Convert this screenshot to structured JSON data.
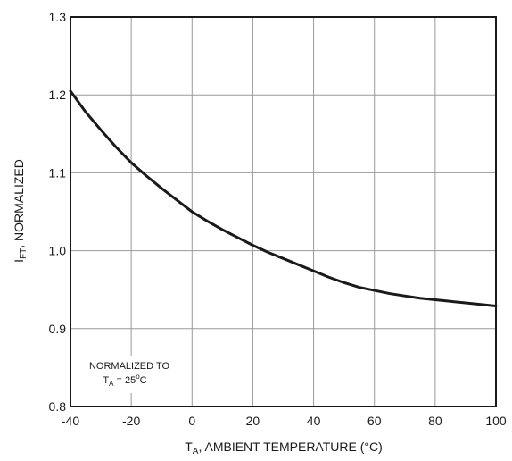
{
  "chart_data": {
    "type": "line",
    "title": "",
    "xlabel": {
      "main": "T",
      "sub": "A",
      "rest": ", AMBIENT TEMPERATURE (°C)"
    },
    "ylabel": {
      "main": "I",
      "sub": "FT",
      "rest": ", NORMALIZED"
    },
    "xlim": [
      -40,
      100
    ],
    "ylim": [
      0.8,
      1.3
    ],
    "x_ticks": [
      -40,
      -20,
      0,
      20,
      40,
      60,
      80,
      100
    ],
    "y_ticks": [
      0.8,
      0.9,
      1.0,
      1.1,
      1.2,
      1.3
    ],
    "x_tick_labels": [
      "-40",
      "-20",
      "0",
      "20",
      "40",
      "60",
      "80",
      "100"
    ],
    "y_tick_labels": [
      "0.8",
      "0.9",
      "1.0",
      "1.1",
      "1.2",
      "1.3"
    ],
    "grid": true,
    "series": [
      {
        "x": [
          -40,
          -35,
          -30,
          -25,
          -20,
          -15,
          -10,
          -5,
          0,
          5,
          10,
          15,
          20,
          25,
          30,
          35,
          40,
          45,
          50,
          55,
          60,
          65,
          70,
          75,
          80,
          85,
          90,
          95,
          100
        ],
        "y": [
          1.205,
          1.178,
          1.155,
          1.133,
          1.113,
          1.096,
          1.08,
          1.065,
          1.05,
          1.038,
          1.027,
          1.017,
          1.007,
          0.998,
          0.99,
          0.982,
          0.974,
          0.966,
          0.959,
          0.953,
          0.949,
          0.945,
          0.942,
          0.939,
          0.937,
          0.935,
          0.933,
          0.931,
          0.929
        ]
      }
    ],
    "annotation": {
      "line1": "NORMALIZED TO",
      "line2_main": "T",
      "line2_sub": "A",
      "line2_rest": " = 25",
      "line2_deg": "o",
      "line2_unit": "C"
    },
    "colors": {
      "line": "#1a1a1a",
      "grid": "#9a9a9a",
      "frame": "#1a1a1a"
    }
  }
}
